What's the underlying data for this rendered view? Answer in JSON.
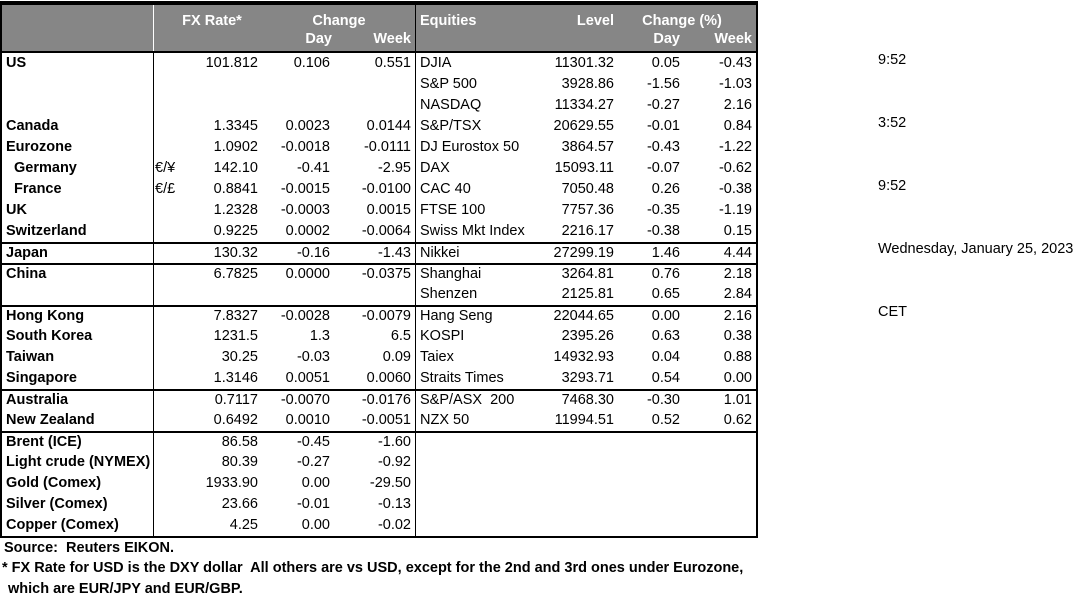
{
  "colors": {
    "header_bg": "#868686",
    "header_text": "#ffffff",
    "border": "#000000"
  },
  "fx_header": {
    "rate": "FX Rate*",
    "change": "Change",
    "day": "Day",
    "week": "Week"
  },
  "eq_header": {
    "name": "Equities",
    "level": "Level",
    "change": "Change (%)",
    "day": "Day",
    "week": "Week"
  },
  "fx_rows": [
    {
      "label": "US",
      "symbol": "",
      "rate": "101.812",
      "day": "0.106",
      "week": "0.551",
      "indent": false,
      "group_top": false
    },
    {
      "label": "",
      "symbol": "",
      "rate": "",
      "day": "",
      "week": "",
      "indent": false,
      "group_top": false
    },
    {
      "label": "",
      "symbol": "",
      "rate": "",
      "day": "",
      "week": "",
      "indent": false,
      "group_top": false
    },
    {
      "label": "Canada",
      "symbol": "",
      "rate": "1.3345",
      "day": "0.0023",
      "week": "0.0144",
      "indent": false,
      "group_top": false
    },
    {
      "label": "Eurozone",
      "symbol": "",
      "rate": "1.0902",
      "day": "-0.0018",
      "week": "-0.0111",
      "indent": false,
      "group_top": false
    },
    {
      "label": "Germany",
      "symbol": "€/¥",
      "rate": "142.10",
      "day": "-0.41",
      "week": "-2.95",
      "indent": true,
      "group_top": false
    },
    {
      "label": "France",
      "symbol": "€/£",
      "rate": "0.8841",
      "day": "-0.0015",
      "week": "-0.0100",
      "indent": true,
      "group_top": false
    },
    {
      "label": "UK",
      "symbol": "",
      "rate": "1.2328",
      "day": "-0.0003",
      "week": "0.0015",
      "indent": false,
      "group_top": false
    },
    {
      "label": "Switzerland",
      "symbol": "",
      "rate": "0.9225",
      "day": "0.0002",
      "week": "-0.0064",
      "indent": false,
      "group_top": false
    },
    {
      "label": "Japan",
      "symbol": "",
      "rate": "130.32",
      "day": "-0.16",
      "week": "-1.43",
      "indent": false,
      "group_top": true
    },
    {
      "label": "China",
      "symbol": "",
      "rate": "6.7825",
      "day": "0.0000",
      "week": "-0.0375",
      "indent": false,
      "group_top": true
    },
    {
      "label": "",
      "symbol": "",
      "rate": "",
      "day": "",
      "week": "",
      "indent": false,
      "group_top": false
    },
    {
      "label": "Hong Kong",
      "symbol": "",
      "rate": "7.8327",
      "day": "-0.0028",
      "week": "-0.0079",
      "indent": false,
      "group_top": true
    },
    {
      "label": "South Korea",
      "symbol": "",
      "rate": "1231.5",
      "day": "1.3",
      "week": "6.5",
      "indent": false,
      "group_top": false
    },
    {
      "label": "Taiwan",
      "symbol": "",
      "rate": "30.25",
      "day": "-0.03",
      "week": "0.09",
      "indent": false,
      "group_top": false
    },
    {
      "label": "Singapore",
      "symbol": "",
      "rate": "1.3146",
      "day": "0.0051",
      "week": "0.0060",
      "indent": false,
      "group_top": false
    },
    {
      "label": "Australia",
      "symbol": "",
      "rate": "0.7117",
      "day": "-0.0070",
      "week": "-0.0176",
      "indent": false,
      "group_top": true
    },
    {
      "label": "New Zealand",
      "symbol": "",
      "rate": "0.6492",
      "day": "0.0010",
      "week": "-0.0051",
      "indent": false,
      "group_top": false
    },
    {
      "label": "Brent (ICE)",
      "symbol": "",
      "rate": "86.58",
      "day": "-0.45",
      "week": "-1.60",
      "indent": false,
      "group_top": true
    },
    {
      "label": "Light crude (NYMEX)",
      "symbol": "",
      "rate": "80.39",
      "day": "-0.27",
      "week": "-0.92",
      "indent": false,
      "group_top": false
    },
    {
      "label": "Gold (Comex)",
      "symbol": "",
      "rate": "1933.90",
      "day": "0.00",
      "week": "-29.50",
      "indent": false,
      "group_top": false
    },
    {
      "label": "Silver (Comex)",
      "symbol": "",
      "rate": "23.66",
      "day": "-0.01",
      "week": "-0.13",
      "indent": false,
      "group_top": false
    },
    {
      "label": "Copper (Comex)",
      "symbol": "",
      "rate": "4.25",
      "day": "0.00",
      "week": "-0.02",
      "indent": false,
      "group_top": false
    }
  ],
  "equity_rows": [
    {
      "label": "DJIA",
      "level": "11301.32",
      "day": "0.05",
      "week": "-0.43",
      "group_top": false
    },
    {
      "label": "S&P 500",
      "level": "3928.86",
      "day": "-1.56",
      "week": "-1.03",
      "group_top": false
    },
    {
      "label": "NASDAQ",
      "level": "11334.27",
      "day": "-0.27",
      "week": "2.16",
      "group_top": false
    },
    {
      "label": "S&P/TSX",
      "level": "20629.55",
      "day": "-0.01",
      "week": "0.84",
      "group_top": false
    },
    {
      "label": "DJ Eurostox 50",
      "level": "3864.57",
      "day": "-0.43",
      "week": "-1.22",
      "group_top": false
    },
    {
      "label": "DAX",
      "level": "15093.11",
      "day": "-0.07",
      "week": "-0.62",
      "group_top": false
    },
    {
      "label": "CAC 40",
      "level": "7050.48",
      "day": "0.26",
      "week": "-0.38",
      "group_top": false
    },
    {
      "label": "FTSE 100",
      "level": "7757.36",
      "day": "-0.35",
      "week": "-1.19",
      "group_top": false
    },
    {
      "label": "Swiss Mkt Index",
      "level": "2216.17",
      "day": "-0.38",
      "week": "0.15",
      "group_top": false
    },
    {
      "label": "Nikkei",
      "level": "27299.19",
      "day": "1.46",
      "week": "4.44",
      "group_top": true
    },
    {
      "label": "Shanghai",
      "level": "3264.81",
      "day": "0.76",
      "week": "2.18",
      "group_top": true
    },
    {
      "label": "Shenzen",
      "level": "2125.81",
      "day": "0.65",
      "week": "2.84",
      "group_top": false
    },
    {
      "label": "Hang Seng",
      "level": "22044.65",
      "day": "0.00",
      "week": "2.16",
      "group_top": true
    },
    {
      "label": "KOSPI",
      "level": "2395.26",
      "day": "0.63",
      "week": "0.38",
      "group_top": false
    },
    {
      "label": "Taiex",
      "level": "14932.93",
      "day": "0.04",
      "week": "0.88",
      "group_top": false
    },
    {
      "label": "Straits Times",
      "level": "3293.71",
      "day": "0.54",
      "week": "0.00",
      "group_top": false
    },
    {
      "label": "S&P/ASX  200",
      "level": "7468.30",
      "day": "-0.30",
      "week": "1.01",
      "group_top": true
    },
    {
      "label": "NZX 50",
      "level": "11994.51",
      "day": "0.52",
      "week": "0.62",
      "group_top": false
    }
  ],
  "clock": {
    "time1": "9:52",
    "time2": "3:52",
    "time3": "9:52",
    "date": "Wednesday, January 25, 2023",
    "timezone": "CET"
  },
  "footer": {
    "source": "Source:  Reuters EIKON.",
    "note1": "* FX Rate for USD is the DXY dollar  All others are vs USD, except for the 2nd and 3rd ones under Eurozone,",
    "note2": "which are EUR/JPY and EUR/GBP."
  }
}
